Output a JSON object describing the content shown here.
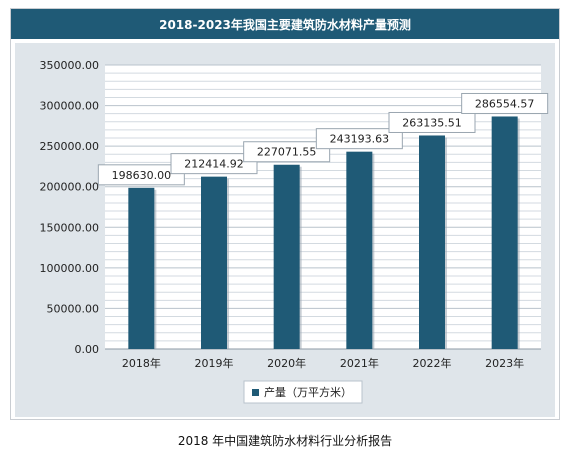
{
  "chart_data": {
    "type": "bar",
    "title": "2018-2023年我国主要建筑防水材料产量预测",
    "categories": [
      "2018年",
      "2019年",
      "2020年",
      "2021年",
      "2022年",
      "2023年"
    ],
    "series": [
      {
        "name": "产量（万平方米）",
        "values": [
          198630.0,
          212414.92,
          227071.55,
          243193.63,
          263135.51,
          286554.57
        ],
        "labels": [
          "198630.00",
          "212414.92",
          "227071.55",
          "243193.63",
          "263135.51",
          "286554.57"
        ]
      }
    ],
    "yticks": [
      "0.00",
      "50000.00",
      "100000.00",
      "150000.00",
      "200000.00",
      "250000.00",
      "300000.00",
      "350000.00"
    ],
    "ylim": [
      0,
      350000
    ],
    "grid": true,
    "legend_position": "bottom",
    "bar_color": "#1f5a76",
    "title_bar_color": "#1f5a76"
  },
  "caption": "2018 年中国建筑防水材料行业分析报告"
}
